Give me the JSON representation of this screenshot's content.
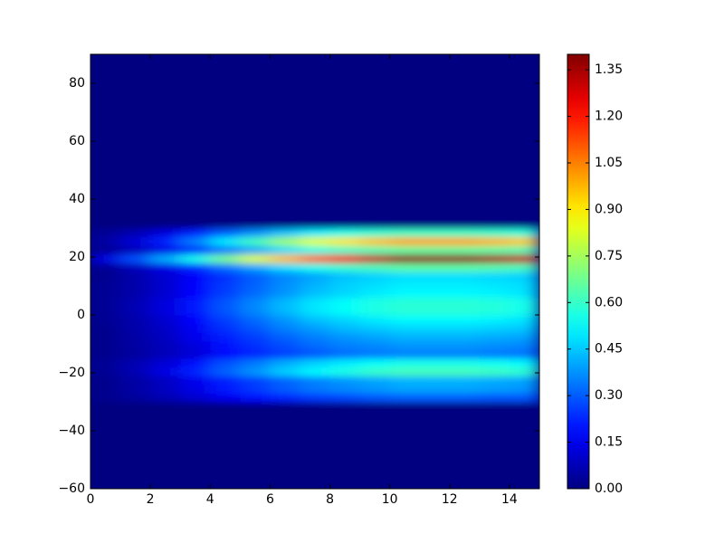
{
  "chart_data": {
    "type": "heatmap",
    "colormap": "jet",
    "xlim": [
      0,
      15
    ],
    "ylim": [
      -60,
      90
    ],
    "clim": [
      0,
      1.4
    ],
    "xticks": [
      0,
      2,
      4,
      6,
      8,
      10,
      12,
      14
    ],
    "yticks": [
      {
        "value": -60,
        "label": "−60"
      },
      {
        "value": -40,
        "label": "−40"
      },
      {
        "value": -20,
        "label": "−20"
      },
      0,
      20,
      40,
      60,
      80
    ],
    "cticks": [
      {
        "value": 0,
        "label": "0.00"
      },
      {
        "value": 0.15,
        "label": "0.15"
      },
      {
        "value": 0.3,
        "label": "0.30"
      },
      {
        "value": 0.45,
        "label": "0.45"
      },
      {
        "value": 0.6,
        "label": "0.60"
      },
      {
        "value": 0.75,
        "label": "0.75"
      },
      {
        "value": 0.9,
        "label": "0.90"
      },
      {
        "value": 1.05,
        "label": "1.05"
      },
      {
        "value": 1.2,
        "label": "1.20"
      },
      {
        "value": 1.35,
        "label": "1.35"
      }
    ],
    "xbins": [
      0,
      1,
      2,
      3,
      4,
      5,
      6,
      7,
      8,
      9,
      10,
      11,
      12,
      13,
      14,
      15
    ],
    "ybins": [
      -60,
      -30,
      -27,
      -24,
      -21,
      -18,
      -15,
      -12,
      -9,
      -6,
      -3,
      0,
      3,
      6,
      9,
      12,
      15,
      18,
      21,
      24,
      27,
      30,
      90
    ],
    "z": [
      [
        0,
        0,
        0,
        0,
        0,
        0,
        0,
        0,
        0,
        0,
        0,
        0,
        0,
        0,
        0
      ],
      [
        0.02,
        0.04,
        0.07,
        0.11,
        0.15,
        0.19,
        0.22,
        0.25,
        0.27,
        0.29,
        0.3,
        0.3,
        0.3,
        0.29,
        0.29
      ],
      [
        0.02,
        0.05,
        0.09,
        0.14,
        0.2,
        0.25,
        0.3,
        0.34,
        0.36,
        0.38,
        0.4,
        0.4,
        0.4,
        0.39,
        0.38
      ],
      [
        0.02,
        0.05,
        0.09,
        0.15,
        0.21,
        0.26,
        0.31,
        0.35,
        0.38,
        0.4,
        0.42,
        0.42,
        0.42,
        0.41,
        0.4
      ],
      [
        0.03,
        0.07,
        0.14,
        0.22,
        0.31,
        0.38,
        0.46,
        0.52,
        0.56,
        0.6,
        0.62,
        0.62,
        0.62,
        0.61,
        0.59
      ],
      [
        0.03,
        0.07,
        0.12,
        0.19,
        0.28,
        0.34,
        0.41,
        0.46,
        0.5,
        0.53,
        0.55,
        0.55,
        0.55,
        0.54,
        0.52
      ],
      [
        0.02,
        0.04,
        0.08,
        0.12,
        0.18,
        0.22,
        0.26,
        0.29,
        0.32,
        0.34,
        0.35,
        0.35,
        0.35,
        0.34,
        0.33
      ],
      [
        0.02,
        0.05,
        0.08,
        0.13,
        0.19,
        0.24,
        0.28,
        0.32,
        0.35,
        0.36,
        0.38,
        0.38,
        0.38,
        0.37,
        0.36
      ],
      [
        0.02,
        0.05,
        0.09,
        0.15,
        0.21,
        0.26,
        0.31,
        0.35,
        0.38,
        0.4,
        0.42,
        0.42,
        0.42,
        0.41,
        0.4
      ],
      [
        0.02,
        0.06,
        0.1,
        0.16,
        0.24,
        0.29,
        0.35,
        0.39,
        0.43,
        0.45,
        0.47,
        0.47,
        0.47,
        0.46,
        0.45
      ],
      [
        0.03,
        0.06,
        0.11,
        0.18,
        0.26,
        0.32,
        0.38,
        0.44,
        0.47,
        0.5,
        0.52,
        0.52,
        0.52,
        0.51,
        0.49
      ],
      [
        0.03,
        0.07,
        0.13,
        0.2,
        0.29,
        0.36,
        0.43,
        0.49,
        0.53,
        0.56,
        0.58,
        0.58,
        0.58,
        0.57,
        0.55
      ],
      [
        0.03,
        0.07,
        0.13,
        0.2,
        0.29,
        0.36,
        0.43,
        0.49,
        0.53,
        0.56,
        0.58,
        0.58,
        0.58,
        0.57,
        0.55
      ],
      [
        0.03,
        0.06,
        0.11,
        0.18,
        0.26,
        0.32,
        0.38,
        0.44,
        0.47,
        0.5,
        0.52,
        0.52,
        0.52,
        0.51,
        0.49
      ],
      [
        0.03,
        0.06,
        0.11,
        0.18,
        0.25,
        0.31,
        0.37,
        0.42,
        0.46,
        0.48,
        0.5,
        0.5,
        0.5,
        0.49,
        0.48
      ],
      [
        0.02,
        0.06,
        0.11,
        0.17,
        0.24,
        0.3,
        0.36,
        0.4,
        0.44,
        0.46,
        0.48,
        0.48,
        0.48,
        0.47,
        0.46
      ],
      [
        0.03,
        0.08,
        0.14,
        0.23,
        0.33,
        0.4,
        0.48,
        0.55,
        0.59,
        0.62,
        0.65,
        0.65,
        0.65,
        0.64,
        0.62
      ],
      [
        0.14,
        0.28,
        0.41,
        0.55,
        0.69,
        0.83,
        0.97,
        1.1,
        1.24,
        1.31,
        1.38,
        1.38,
        1.38,
        1.35,
        1.31
      ],
      [
        0.03,
        0.08,
        0.14,
        0.23,
        0.33,
        0.4,
        0.48,
        0.55,
        0.59,
        0.62,
        0.65,
        0.65,
        0.65,
        0.64,
        0.62
      ],
      [
        0.05,
        0.12,
        0.22,
        0.35,
        0.5,
        0.62,
        0.74,
        0.84,
        0.91,
        0.96,
        1.0,
        1.0,
        1.0,
        0.98,
        0.95
      ],
      [
        0.03,
        0.07,
        0.13,
        0.21,
        0.3,
        0.37,
        0.44,
        0.5,
        0.55,
        0.58,
        0.6,
        0.6,
        0.6,
        0.59,
        0.57
      ],
      [
        0,
        0,
        0,
        0,
        0,
        0,
        0,
        0,
        0,
        0,
        0,
        0,
        0,
        0,
        0
      ]
    ]
  }
}
